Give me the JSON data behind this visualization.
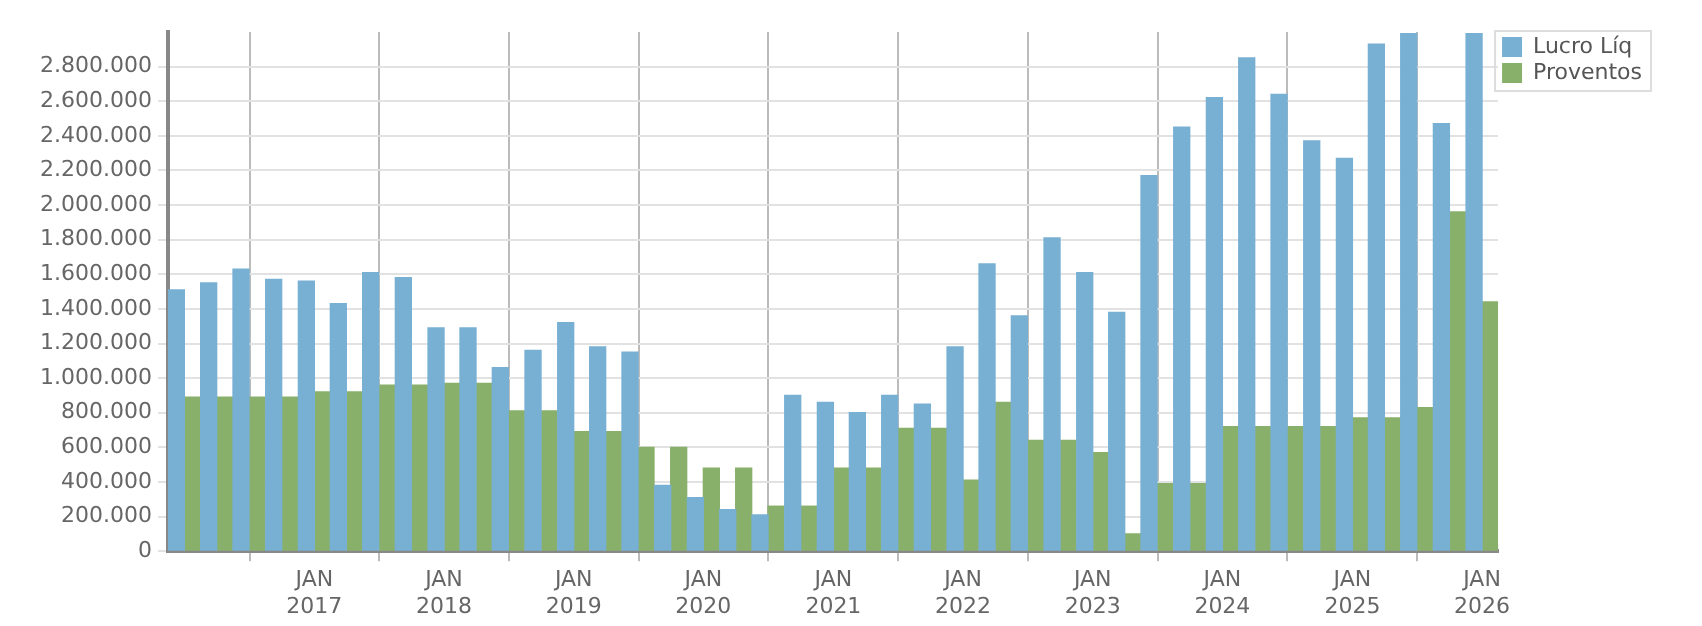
{
  "chart_data": {
    "type": "bar",
    "x": [
      "2016-01",
      "2016-04",
      "2016-07",
      "2016-10",
      "2017-01",
      "2017-04",
      "2017-07",
      "2017-10",
      "2018-01",
      "2018-04",
      "2018-07",
      "2018-10",
      "2019-01",
      "2019-04",
      "2019-07",
      "2019-10",
      "2020-01",
      "2020-04",
      "2020-07",
      "2020-10",
      "2021-01",
      "2021-04",
      "2021-07",
      "2021-10",
      "2022-01",
      "2022-04",
      "2022-07",
      "2022-10",
      "2023-01",
      "2023-04",
      "2023-07",
      "2023-10",
      "2024-01",
      "2024-04",
      "2024-07",
      "2024-10",
      "2025-01",
      "2025-04",
      "2025-07",
      "2025-10",
      "2026-01"
    ],
    "series": [
      {
        "name": "Lucro Líq",
        "color": "#78b0d3",
        "values": [
          1510000,
          1550000,
          1630000,
          1570000,
          1560000,
          1430000,
          1610000,
          1580000,
          1290000,
          1290000,
          1060000,
          1160000,
          1320000,
          1180000,
          1150000,
          380000,
          310000,
          240000,
          210000,
          900000,
          860000,
          800000,
          900000,
          850000,
          1180000,
          1660000,
          1360000,
          1810000,
          1610000,
          1380000,
          2170000,
          2450000,
          2620000,
          2850000,
          2640000,
          2370000,
          2270000,
          2930000,
          2990000,
          2470000,
          2990000
        ]
      },
      {
        "name": "Proventos",
        "color": "#88b06a",
        "values": [
          890000,
          890000,
          890000,
          890000,
          920000,
          920000,
          960000,
          960000,
          970000,
          970000,
          810000,
          810000,
          690000,
          690000,
          600000,
          600000,
          480000,
          480000,
          260000,
          260000,
          480000,
          480000,
          710000,
          710000,
          410000,
          860000,
          640000,
          640000,
          570000,
          100000,
          390000,
          390000,
          720000,
          720000,
          720000,
          720000,
          770000,
          770000,
          830000,
          1960000,
          1440000
        ]
      }
    ],
    "xlim": [
      "2015-11-16",
      "2026-02-15"
    ],
    "xticks": [
      {
        "value": "2017-01",
        "label": "JAN 2017"
      },
      {
        "value": "2018-01",
        "label": "JAN 2018"
      },
      {
        "value": "2019-01",
        "label": "JAN 2019"
      },
      {
        "value": "2020-01",
        "label": "JAN 2020"
      },
      {
        "value": "2021-01",
        "label": "JAN 2021"
      },
      {
        "value": "2022-01",
        "label": "JAN 2022"
      },
      {
        "value": "2023-01",
        "label": "JAN 2023"
      },
      {
        "value": "2024-01",
        "label": "JAN 2024"
      },
      {
        "value": "2025-01",
        "label": "JAN 2025"
      },
      {
        "value": "2026-01",
        "label": "JAN 2026"
      }
    ],
    "ylim": [
      0,
      3000000
    ],
    "yticks": [
      0,
      {
        "value": 200000,
        "label": "200.000"
      },
      {
        "value": 400000,
        "label": "400.000"
      },
      {
        "value": 600000,
        "label": "600.000"
      },
      {
        "value": 800000,
        "label": "800.000"
      },
      {
        "value": 1000000,
        "label": "1.000.000"
      },
      {
        "value": 1200000,
        "label": "1.200.000"
      },
      {
        "value": 1400000,
        "label": "1.400.000"
      },
      {
        "value": 1600000,
        "label": "1.600.000"
      },
      {
        "value": 1800000,
        "label": "1.800.000"
      },
      {
        "value": 2000000,
        "label": "2.000.000"
      },
      {
        "value": 2200000,
        "label": "2.200.000"
      },
      {
        "value": 2400000,
        "label": "2.400.000"
      },
      {
        "value": 2600000,
        "label": "2.600.000"
      },
      {
        "value": 2800000,
        "label": "2.800.000"
      }
    ],
    "grid": true,
    "legend": "top right"
  }
}
